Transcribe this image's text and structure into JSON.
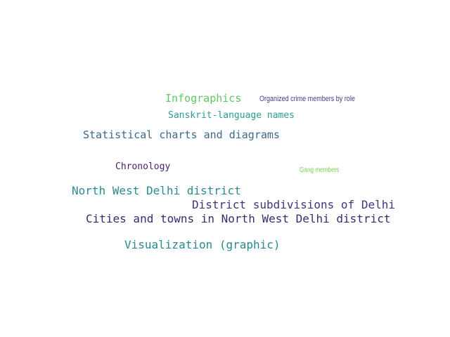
{
  "words": [
    {
      "text": "Infographics",
      "color": "#5ec962"
    },
    {
      "text": "Organized crime members by role",
      "color": "#433e85"
    },
    {
      "text": "Sanskrit-language names",
      "color": "#2a9d8f"
    },
    {
      "text": "Statistical charts and diagrams",
      "color": "#3b6a8c"
    },
    {
      "text": "Chronology",
      "color": "#482173"
    },
    {
      "text": "Gang members",
      "color": "#7ad151"
    },
    {
      "text": "North West Delhi district",
      "color": "#2a8a93"
    },
    {
      "text": "District subdivisions of Delhi",
      "color": "#46327e"
    },
    {
      "text": "Cities and towns in North West Delhi district",
      "color": "#3b2a6e"
    },
    {
      "text": "Visualization (graphic)",
      "color": "#26888e"
    }
  ]
}
